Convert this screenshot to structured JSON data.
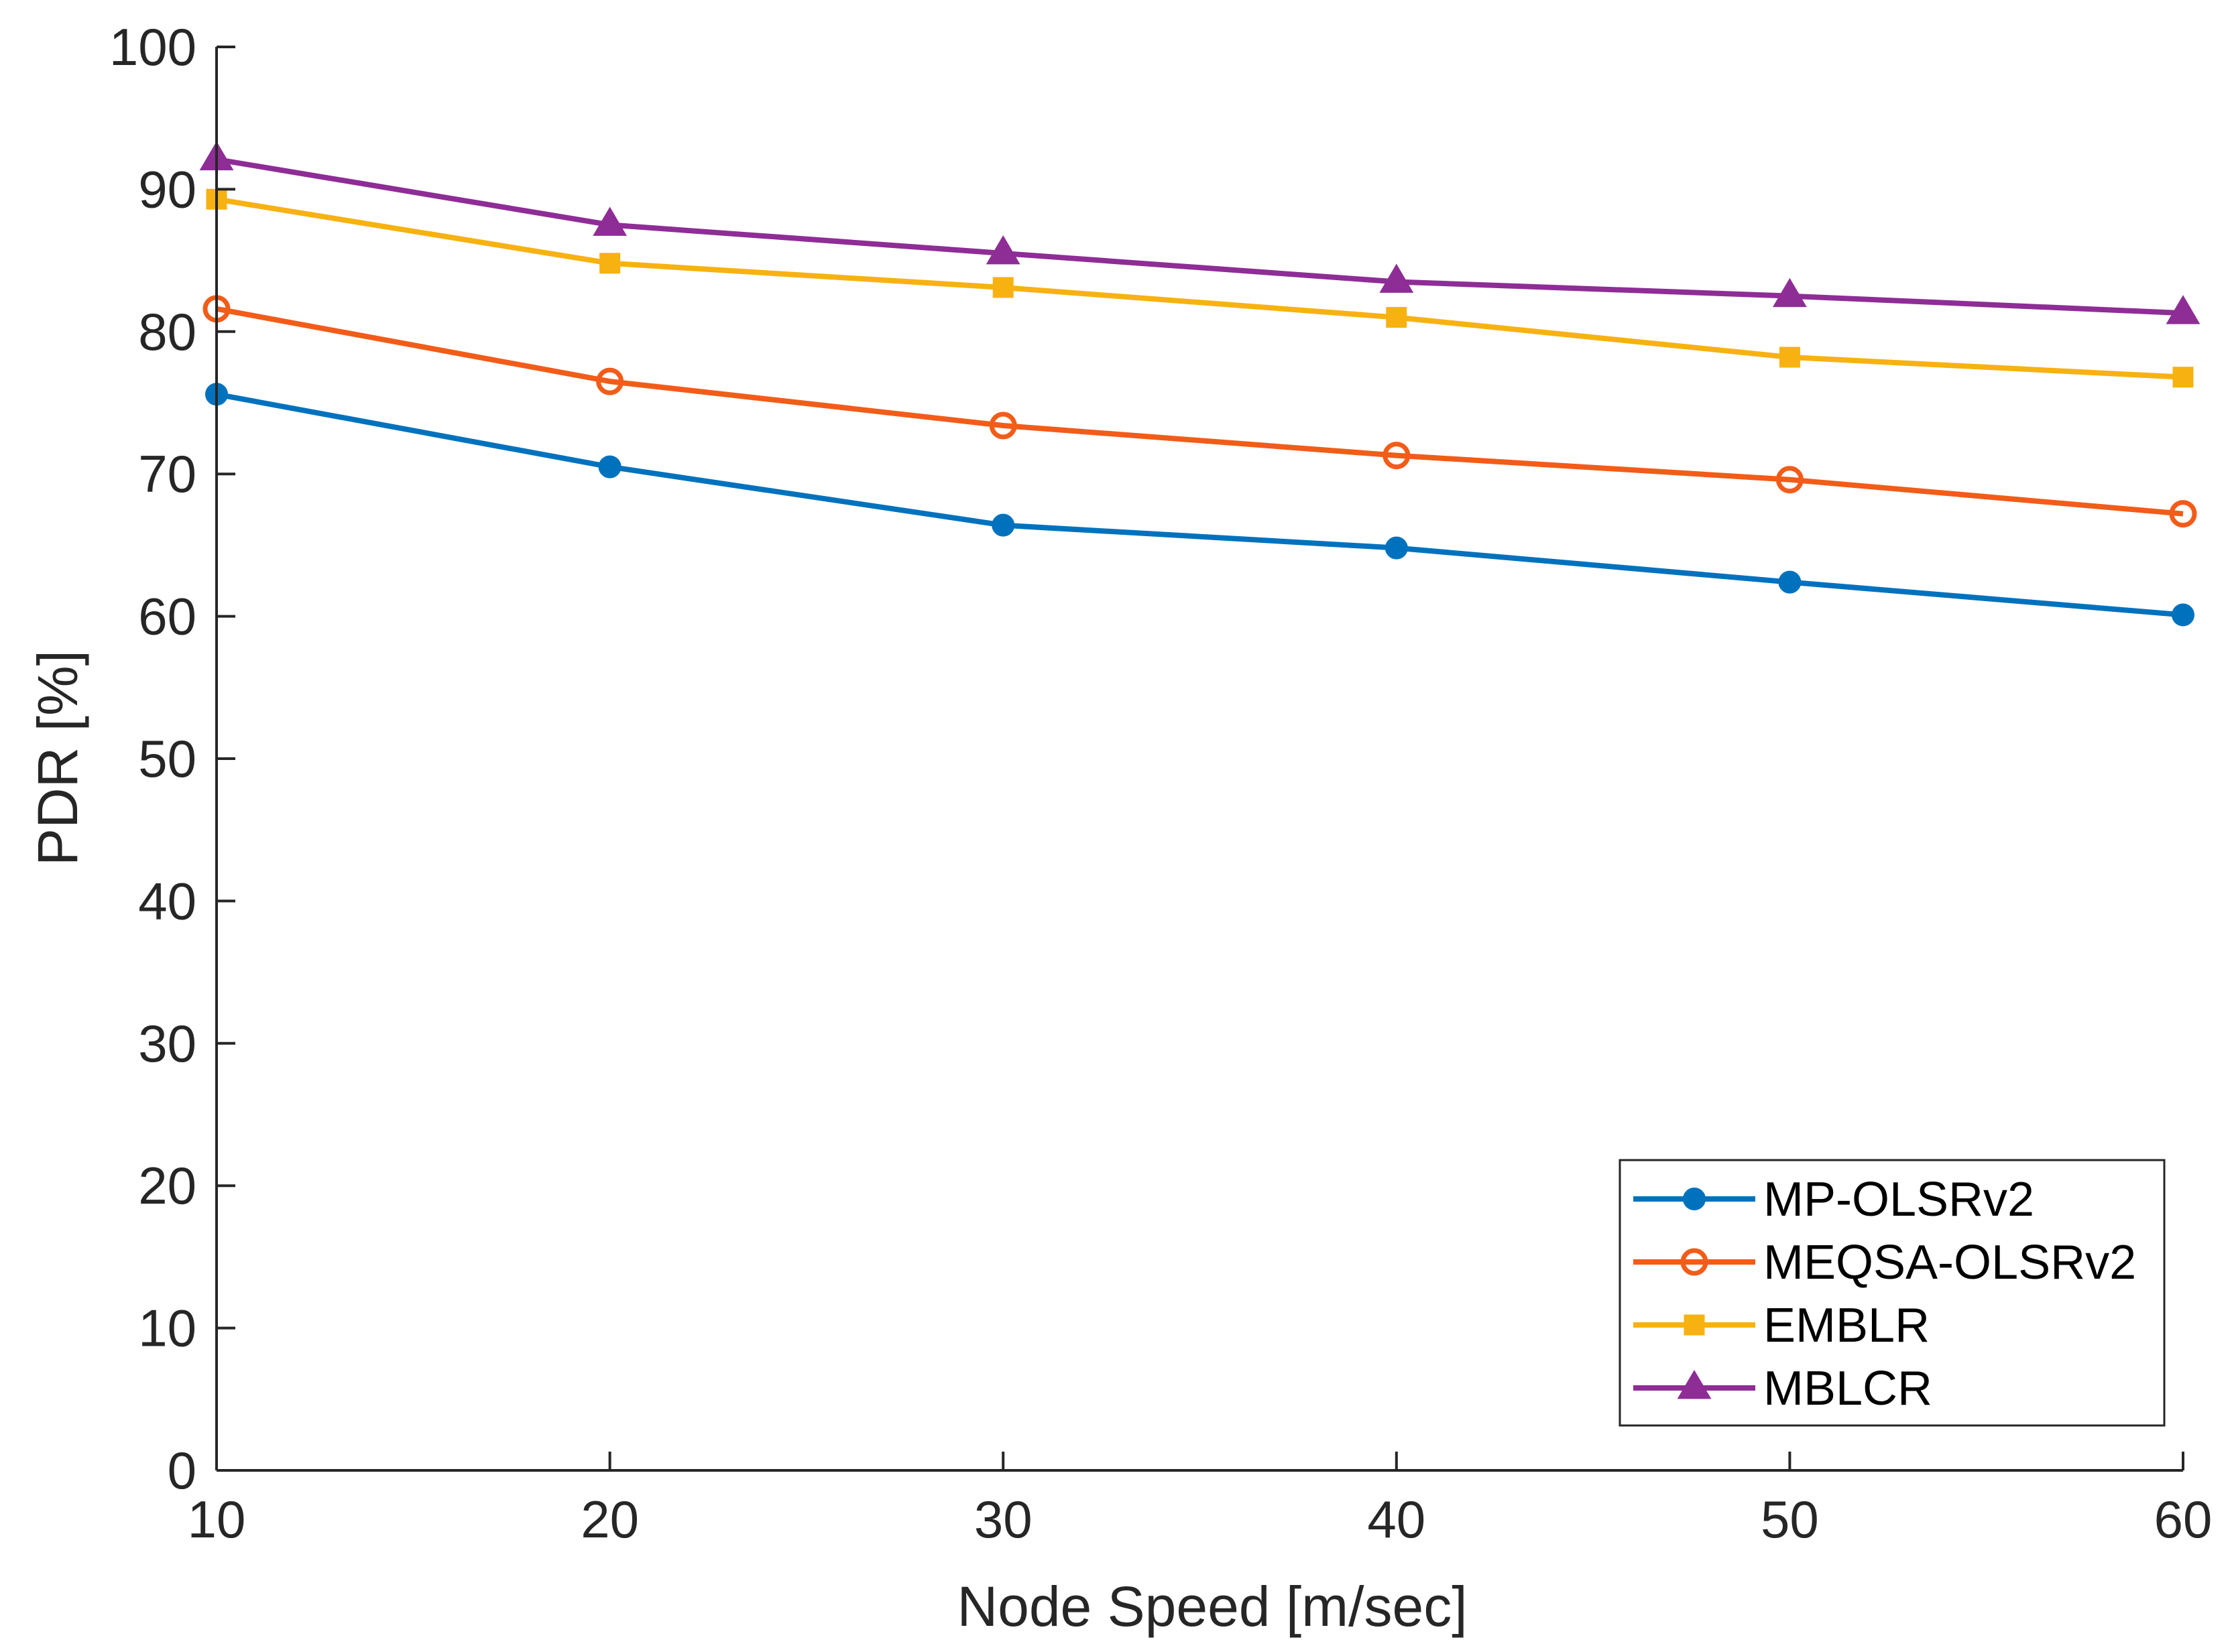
{
  "chart_data": {
    "type": "line",
    "title": "",
    "xlabel": "Node Speed [m/sec]",
    "ylabel": "PDR [%]",
    "x": [
      10,
      20,
      30,
      40,
      50,
      60
    ],
    "xlim": [
      10,
      60
    ],
    "ylim": [
      0,
      100
    ],
    "xticks": [
      10,
      20,
      30,
      40,
      50,
      60
    ],
    "yticks": [
      0,
      10,
      20,
      30,
      40,
      50,
      60,
      70,
      80,
      90,
      100
    ],
    "grid": false,
    "legend_position": "bottom-right",
    "series": [
      {
        "name": "MP-OLSRv2",
        "values": [
          75.6,
          70.5,
          66.4,
          64.8,
          62.4,
          60.1
        ],
        "color": "#0072BD",
        "marker": "filled-circle"
      },
      {
        "name": "MEQSA-OLSRv2",
        "values": [
          81.6,
          76.5,
          73.4,
          71.3,
          69.6,
          67.2
        ],
        "color": "#F25C19",
        "marker": "open-circle"
      },
      {
        "name": "EMBLR",
        "values": [
          89.3,
          84.8,
          83.1,
          81.0,
          78.2,
          76.8
        ],
        "color": "#F7B212",
        "marker": "square"
      },
      {
        "name": "MBLCR",
        "values": [
          92.1,
          87.5,
          85.5,
          83.5,
          82.5,
          81.3
        ],
        "color": "#8E2D96",
        "marker": "triangle"
      }
    ]
  }
}
